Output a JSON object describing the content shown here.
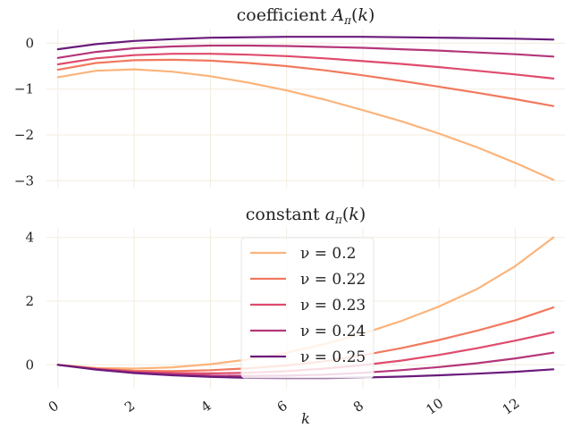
{
  "chart_data": [
    {
      "type": "line",
      "title": "coefficient A_π(k)",
      "xlabel": "",
      "ylabel": "",
      "x": [
        0,
        1,
        2,
        3,
        4,
        5,
        6,
        7,
        8,
        9,
        10,
        11,
        12,
        13
      ],
      "xlim": [
        -0.3,
        13.3
      ],
      "ylim": [
        -3.15,
        0.3
      ],
      "x_ticks": [
        0,
        2,
        4,
        6,
        8,
        10,
        12
      ],
      "y_ticks": [
        0,
        -1,
        -2,
        -3
      ],
      "grid": true,
      "series": [
        {
          "name": "ν = 0.2",
          "color": "#fbb47b",
          "values": [
            -0.74,
            -0.6,
            -0.57,
            -0.62,
            -0.72,
            -0.86,
            -1.03,
            -1.23,
            -1.46,
            -1.7,
            -1.97,
            -2.27,
            -2.61,
            -2.98
          ]
        },
        {
          "name": "ν = 0.22",
          "color": "#f1795e",
          "values": [
            -0.58,
            -0.43,
            -0.37,
            -0.36,
            -0.38,
            -0.43,
            -0.5,
            -0.59,
            -0.7,
            -0.82,
            -0.95,
            -1.08,
            -1.22,
            -1.37
          ]
        },
        {
          "name": "ν = 0.23",
          "color": "#df4b6c",
          "values": [
            -0.46,
            -0.33,
            -0.26,
            -0.23,
            -0.23,
            -0.25,
            -0.28,
            -0.33,
            -0.39,
            -0.45,
            -0.52,
            -0.6,
            -0.68,
            -0.77
          ]
        },
        {
          "name": "ν = 0.24",
          "color": "#b5367a",
          "values": [
            -0.32,
            -0.19,
            -0.11,
            -0.07,
            -0.05,
            -0.05,
            -0.06,
            -0.08,
            -0.1,
            -0.13,
            -0.16,
            -0.2,
            -0.24,
            -0.29
          ]
        },
        {
          "name": "ν = 0.25",
          "color": "#6a1b7b",
          "values": [
            -0.13,
            -0.02,
            0.05,
            0.09,
            0.12,
            0.13,
            0.14,
            0.14,
            0.14,
            0.13,
            0.12,
            0.11,
            0.1,
            0.08
          ]
        }
      ]
    },
    {
      "type": "line",
      "title": "constant a_π(k)",
      "xlabel": "k",
      "ylabel": "",
      "x": [
        0,
        1,
        2,
        3,
        4,
        5,
        6,
        7,
        8,
        9,
        10,
        11,
        12,
        13
      ],
      "xlim": [
        -0.3,
        13.3
      ],
      "ylim": [
        -0.75,
        4.3
      ],
      "x_ticks": [
        0,
        2,
        4,
        6,
        8,
        10,
        12
      ],
      "y_ticks": [
        0,
        2,
        4
      ],
      "grid": true,
      "legend_position": "center",
      "series": [
        {
          "name": "ν = 0.2",
          "color": "#fbb47b",
          "values": [
            0.0,
            -0.1,
            -0.12,
            -0.08,
            0.02,
            0.17,
            0.38,
            0.65,
            0.98,
            1.37,
            1.83,
            2.38,
            3.1,
            4.0
          ]
        },
        {
          "name": "ν = 0.22",
          "color": "#f1795e",
          "values": [
            0.0,
            -0.12,
            -0.19,
            -0.2,
            -0.17,
            -0.11,
            -0.02,
            0.11,
            0.3,
            0.52,
            0.78,
            1.07,
            1.4,
            1.8
          ]
        },
        {
          "name": "ν = 0.23",
          "color": "#df4b6c",
          "values": [
            0.0,
            -0.13,
            -0.22,
            -0.26,
            -0.27,
            -0.25,
            -0.2,
            -0.12,
            -0.01,
            0.13,
            0.31,
            0.52,
            0.76,
            1.02
          ]
        },
        {
          "name": "ν = 0.24",
          "color": "#b5367a",
          "values": [
            0.0,
            -0.14,
            -0.24,
            -0.3,
            -0.34,
            -0.35,
            -0.34,
            -0.31,
            -0.25,
            -0.17,
            -0.07,
            0.05,
            0.2,
            0.38
          ]
        },
        {
          "name": "ν = 0.25",
          "color": "#6a1b7b",
          "values": [
            0.0,
            -0.15,
            -0.26,
            -0.33,
            -0.38,
            -0.41,
            -0.42,
            -0.42,
            -0.4,
            -0.37,
            -0.33,
            -0.28,
            -0.22,
            -0.14
          ]
        }
      ]
    }
  ]
}
